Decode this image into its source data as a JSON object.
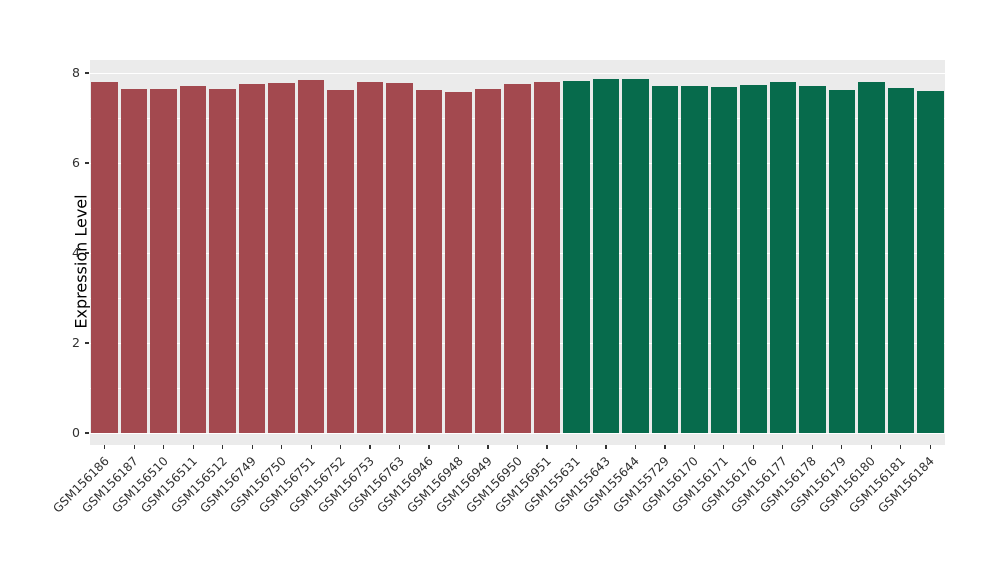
{
  "chart_data": {
    "type": "bar",
    "title": "",
    "xlabel": "",
    "ylabel": "Expression Level",
    "ylim": [
      0,
      8
    ],
    "yticks_major": [
      0,
      2,
      4,
      6,
      8
    ],
    "yticks_minor": [
      1,
      3,
      5,
      7
    ],
    "grid": "on",
    "legend": "none",
    "panel_bg": "#EBEBEB",
    "grid_color": "#FFFFFF",
    "categories": [
      "GSM156186",
      "GSM156187",
      "GSM156510",
      "GSM156511",
      "GSM156512",
      "GSM156749",
      "GSM156750",
      "GSM156751",
      "GSM156752",
      "GSM156753",
      "GSM156763",
      "GSM156946",
      "GSM156948",
      "GSM156949",
      "GSM156950",
      "GSM156951",
      "GSM155631",
      "GSM155643",
      "GSM155644",
      "GSM155729",
      "GSM156170",
      "GSM156171",
      "GSM156176",
      "GSM156177",
      "GSM156178",
      "GSM156179",
      "GSM156180",
      "GSM156181",
      "GSM156184"
    ],
    "values": [
      7.8,
      7.65,
      7.65,
      7.72,
      7.65,
      7.75,
      7.77,
      7.85,
      7.63,
      7.8,
      7.77,
      7.62,
      7.57,
      7.65,
      7.75,
      7.8,
      7.82,
      7.87,
      7.87,
      7.72,
      7.72,
      7.7,
      7.73,
      7.8,
      7.72,
      7.63,
      7.8,
      7.67,
      7.6
    ],
    "bar_colors": [
      "#A3494F",
      "#A3494F",
      "#A3494F",
      "#A3494F",
      "#A3494F",
      "#A3494F",
      "#A3494F",
      "#A3494F",
      "#A3494F",
      "#A3494F",
      "#A3494F",
      "#A3494F",
      "#A3494F",
      "#A3494F",
      "#A3494F",
      "#A3494F",
      "#076B4C",
      "#076B4C",
      "#076B4C",
      "#076B4C",
      "#076B4C",
      "#076B4C",
      "#076B4C",
      "#076B4C",
      "#076B4C",
      "#076B4C",
      "#076B4C",
      "#076B4C",
      "#076B4C"
    ],
    "palette": {
      "left_group": "#A3494F",
      "right_group": "#076B4C"
    }
  }
}
